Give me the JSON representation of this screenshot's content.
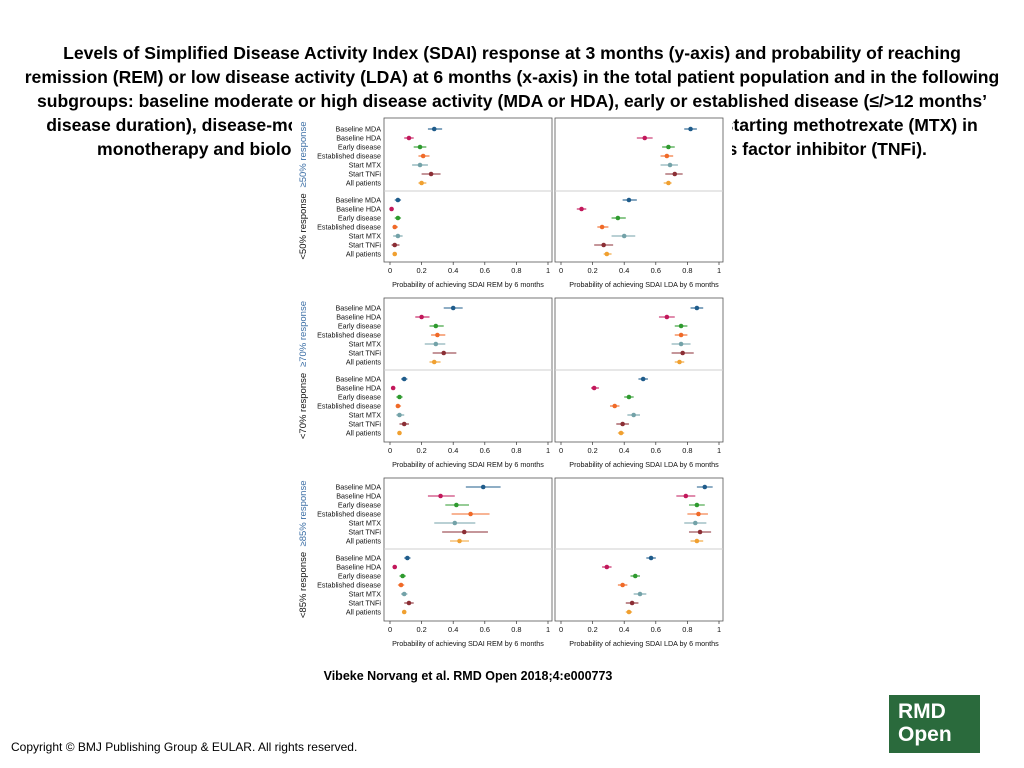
{
  "title": "Levels of Simplified Disease Activity Index (SDAI) response at 3 months (y-axis) and probability of reaching remission (REM) or low disease activity (LDA) at 6 months (x-axis) in the total patient population and in the following subgroups: baseline moderate or high disease activity (MDA or HDA), early or established disease (≤/>12 months’ disease duration), disease-modifying antirheumatic drug (DMARD) monotherapy starting methotrexate (MTX) in monotherapy and biologic DMARD-naïve patients starting a tumour necrosis factor inhibitor (TNFi).",
  "citation": "Vibeke Norvang et al. RMD Open 2018;4:e000773",
  "copyright": "Copyright © BMJ Publishing Group & EULAR. All rights reserved.",
  "logo": {
    "line1": "RMD",
    "line2": "Open",
    "color": "#2a6a3c"
  },
  "colors": {
    "Baseline MDA": "#1f5c8b",
    "Baseline HDA": "#c2185b",
    "Early disease": "#2e9a2e",
    "Established disease": "#f06a28",
    "Start MTX": "#73a2a8",
    "Start TNFi": "#8b2e35",
    "All patients": "#f0a030"
  },
  "chart_data": {
    "type": "scatter",
    "subtype": "forest plot with 95% confidence intervals",
    "categories": [
      "Baseline MDA",
      "Baseline HDA",
      "Early disease",
      "Established disease",
      "Start MTX",
      "Start TNFi",
      "All patients"
    ],
    "xlim": [
      0,
      1
    ],
    "xticks": [
      "0",
      "0.2",
      "0.4",
      "0.6",
      "0.8",
      "1"
    ],
    "xlabels": {
      "REM": "Probability of achieving SDAI REM by 6 months",
      "LDA": "Probability of achieving SDAI LDA by 6 months"
    },
    "row_groups": [
      {
        "label": "≥50% response",
        "panels": [
          {
            "upper": "≥50% response",
            "lower": "<50% response",
            "REM": {
              "upper": [
                [
                  0.28,
                  0.24,
                  0.33
                ],
                [
                  0.12,
                  0.09,
                  0.15
                ],
                [
                  0.19,
                  0.15,
                  0.23
                ],
                [
                  0.21,
                  0.18,
                  0.25
                ],
                [
                  0.19,
                  0.14,
                  0.24
                ],
                [
                  0.26,
                  0.2,
                  0.32
                ],
                [
                  0.2,
                  0.18,
                  0.23
                ]
              ],
              "lower": [
                [
                  0.05,
                  0.03,
                  0.07
                ],
                [
                  0.01,
                  0.0,
                  0.02
                ],
                [
                  0.05,
                  0.03,
                  0.07
                ],
                [
                  0.03,
                  0.02,
                  0.05
                ],
                [
                  0.05,
                  0.02,
                  0.08
                ],
                [
                  0.03,
                  0.01,
                  0.06
                ],
                [
                  0.03,
                  0.02,
                  0.04
                ]
              ]
            },
            "LDA": {
              "upper": [
                [
                  0.82,
                  0.78,
                  0.86
                ],
                [
                  0.53,
                  0.48,
                  0.58
                ],
                [
                  0.68,
                  0.64,
                  0.72
                ],
                [
                  0.67,
                  0.63,
                  0.71
                ],
                [
                  0.69,
                  0.63,
                  0.74
                ],
                [
                  0.72,
                  0.66,
                  0.77
                ],
                [
                  0.68,
                  0.65,
                  0.7
                ]
              ],
              "lower": [
                [
                  0.43,
                  0.39,
                  0.48
                ],
                [
                  0.13,
                  0.1,
                  0.16
                ],
                [
                  0.36,
                  0.32,
                  0.41
                ],
                [
                  0.26,
                  0.23,
                  0.3
                ],
                [
                  0.4,
                  0.32,
                  0.47
                ],
                [
                  0.27,
                  0.21,
                  0.33
                ],
                [
                  0.29,
                  0.27,
                  0.32
                ]
              ]
            }
          },
          {
            "upper": "≥70% response",
            "lower": "<70% response",
            "REM": {
              "upper": [
                [
                  0.4,
                  0.34,
                  0.46
                ],
                [
                  0.2,
                  0.16,
                  0.25
                ],
                [
                  0.29,
                  0.25,
                  0.34
                ],
                [
                  0.3,
                  0.26,
                  0.35
                ],
                [
                  0.29,
                  0.22,
                  0.35
                ],
                [
                  0.34,
                  0.27,
                  0.42
                ],
                [
                  0.28,
                  0.25,
                  0.32
                ]
              ],
              "lower": [
                [
                  0.09,
                  0.07,
                  0.11
                ],
                [
                  0.02,
                  0.01,
                  0.03
                ],
                [
                  0.06,
                  0.04,
                  0.08
                ],
                [
                  0.05,
                  0.04,
                  0.07
                ],
                [
                  0.06,
                  0.04,
                  0.09
                ],
                [
                  0.09,
                  0.06,
                  0.12
                ],
                [
                  0.06,
                  0.05,
                  0.07
                ]
              ]
            },
            "LDA": {
              "upper": [
                [
                  0.86,
                  0.82,
                  0.9
                ],
                [
                  0.67,
                  0.62,
                  0.72
                ],
                [
                  0.76,
                  0.72,
                  0.8
                ],
                [
                  0.76,
                  0.72,
                  0.8
                ],
                [
                  0.76,
                  0.7,
                  0.82
                ],
                [
                  0.77,
                  0.7,
                  0.84
                ],
                [
                  0.75,
                  0.72,
                  0.78
                ]
              ],
              "lower": [
                [
                  0.52,
                  0.49,
                  0.55
                ],
                [
                  0.21,
                  0.19,
                  0.24
                ],
                [
                  0.43,
                  0.4,
                  0.46
                ],
                [
                  0.34,
                  0.31,
                  0.37
                ],
                [
                  0.46,
                  0.42,
                  0.5
                ],
                [
                  0.39,
                  0.35,
                  0.43
                ],
                [
                  0.38,
                  0.36,
                  0.4
                ]
              ]
            }
          },
          {
            "upper": "≥85% response",
            "lower": "<85% response",
            "REM": {
              "upper": [
                [
                  0.59,
                  0.48,
                  0.7
                ],
                [
                  0.32,
                  0.24,
                  0.41
                ],
                [
                  0.42,
                  0.35,
                  0.5
                ],
                [
                  0.51,
                  0.39,
                  0.63
                ],
                [
                  0.41,
                  0.28,
                  0.54
                ],
                [
                  0.47,
                  0.33,
                  0.62
                ],
                [
                  0.44,
                  0.38,
                  0.5
                ]
              ],
              "lower": [
                [
                  0.11,
                  0.09,
                  0.13
                ],
                [
                  0.03,
                  0.02,
                  0.04
                ],
                [
                  0.08,
                  0.06,
                  0.1
                ],
                [
                  0.07,
                  0.05,
                  0.09
                ],
                [
                  0.09,
                  0.07,
                  0.11
                ],
                [
                  0.12,
                  0.09,
                  0.15
                ],
                [
                  0.09,
                  0.08,
                  0.1
                ]
              ]
            },
            "LDA": {
              "upper": [
                [
                  0.91,
                  0.86,
                  0.96
                ],
                [
                  0.79,
                  0.73,
                  0.85
                ],
                [
                  0.86,
                  0.81,
                  0.91
                ],
                [
                  0.87,
                  0.8,
                  0.93
                ],
                [
                  0.85,
                  0.78,
                  0.92
                ],
                [
                  0.88,
                  0.81,
                  0.95
                ],
                [
                  0.86,
                  0.82,
                  0.9
                ]
              ],
              "lower": [
                [
                  0.57,
                  0.54,
                  0.6
                ],
                [
                  0.29,
                  0.26,
                  0.32
                ],
                [
                  0.47,
                  0.44,
                  0.5
                ],
                [
                  0.39,
                  0.36,
                  0.42
                ],
                [
                  0.5,
                  0.46,
                  0.54
                ],
                [
                  0.45,
                  0.41,
                  0.49
                ],
                [
                  0.43,
                  0.41,
                  0.45
                ]
              ]
            }
          }
        ]
      }
    ]
  }
}
